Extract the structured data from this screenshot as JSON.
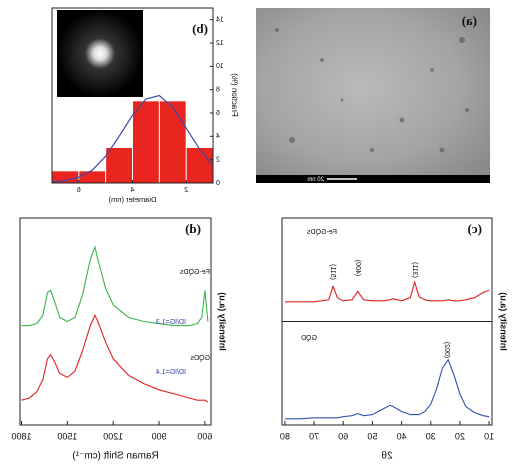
{
  "chart_data": [
    {
      "type": "image",
      "label": "(a)",
      "scale_bar": "20 nm"
    },
    {
      "type": "histogram",
      "label": "(b)",
      "xlabel": "Diameter (nm)",
      "ylabel": "Fraction (%)",
      "bins": [
        1,
        2,
        3,
        4,
        5,
        6,
        7
      ],
      "values": [
        3,
        7,
        7,
        3,
        1,
        1
      ],
      "color": "#e8261f",
      "xlim": [
        1,
        7
      ],
      "xticks": [
        2,
        4,
        6
      ],
      "ylim": [
        0,
        15
      ],
      "yticks": [
        0,
        2,
        4,
        6,
        8,
        10,
        12,
        14
      ],
      "fit": {
        "color": "#3b4aa8",
        "x": [
          1,
          1.5,
          2,
          2.5,
          3,
          3.5,
          4,
          4.5,
          5,
          5.5,
          6,
          6.5,
          7
        ],
        "values": [
          1.5,
          2.9,
          4.7,
          6.5,
          7.5,
          7.2,
          5.8,
          4.0,
          2.3,
          1.1,
          0.5,
          0.2,
          0.1
        ]
      }
    },
    {
      "type": "line",
      "label": "(d)",
      "xlabel": "Raman Shift (cm⁻¹)",
      "ylabel": "Intensity (a.u)",
      "xlim": [
        560,
        1810
      ],
      "xticks": [
        600,
        900,
        1200,
        1500,
        1800
      ],
      "ylim": [
        0,
        10
      ],
      "x": [
        580,
        600,
        620,
        650,
        700,
        800,
        900,
        1000,
        1100,
        1200,
        1250,
        1300,
        1320,
        1350,
        1400,
        1450,
        1500,
        1550,
        1580,
        1610,
        1630,
        1660,
        1700,
        1750,
        1800
      ],
      "series": [
        {
          "name": "Fe-GQDs",
          "note": "ID/IG=1.3",
          "color": "#3cb54a",
          "values": [
            5.0,
            6.5,
            5.2,
            4.9,
            4.8,
            4.8,
            4.9,
            5.0,
            5.2,
            5.8,
            6.6,
            8.0,
            8.6,
            8.0,
            6.3,
            5.2,
            5.0,
            5.2,
            5.9,
            6.5,
            6.4,
            5.3,
            4.9,
            4.8,
            4.8
          ]
        },
        {
          "name": "GQDs",
          "note": "ID/IG=1.4",
          "color": "#e02020",
          "values": [
            1.1,
            1.2,
            1.2,
            1.2,
            1.3,
            1.5,
            1.7,
            2.0,
            2.4,
            3.2,
            4.0,
            5.0,
            5.3,
            4.8,
            3.6,
            2.6,
            2.3,
            2.5,
            3.0,
            3.4,
            3.2,
            2.2,
            1.6,
            1.3,
            1.2
          ]
        }
      ]
    },
    {
      "type": "line",
      "label": "(c)",
      "xlabel": "2θ",
      "ylabel": "Intensity (a.u)",
      "xlim": [
        9,
        81
      ],
      "xticks": [
        10,
        20,
        30,
        40,
        50,
        60,
        70,
        80
      ],
      "ylim": [
        0,
        20
      ],
      "x": [
        10,
        12,
        15,
        18,
        20,
        22,
        24,
        26,
        28,
        30,
        32,
        34,
        35.5,
        37,
        40,
        43,
        44,
        46,
        50,
        53,
        55,
        57,
        60,
        62,
        63.5,
        65,
        70,
        75,
        80
      ],
      "series": [
        {
          "name": "Fe-GQDs",
          "color": "#e02020",
          "values": [
            13.0,
            12.8,
            12.3,
            12.1,
            12.0,
            12.0,
            12.1,
            12.0,
            12.0,
            12.0,
            12.1,
            12.4,
            13.8,
            12.3,
            12.0,
            12.2,
            12.1,
            12.0,
            12.0,
            12.1,
            12.9,
            12.1,
            12.0,
            12.3,
            13.4,
            12.1,
            11.9,
            11.9,
            11.9
          ]
        },
        {
          "name": "GQD",
          "color": "#3050b0",
          "values": [
            0.8,
            0.9,
            1.2,
            1.8,
            3.0,
            4.8,
            6.3,
            5.5,
            3.5,
            2.0,
            1.3,
            1.0,
            1.0,
            1.0,
            1.3,
            1.8,
            1.9,
            1.6,
            1.0,
            0.9,
            1.1,
            0.9,
            0.8,
            0.7,
            0.7,
            0.7,
            0.7,
            0.6,
            0.6
          ]
        }
      ],
      "peak_labels": [
        "(311)",
        "(400)",
        "(511)",
        "(002)"
      ]
    }
  ]
}
